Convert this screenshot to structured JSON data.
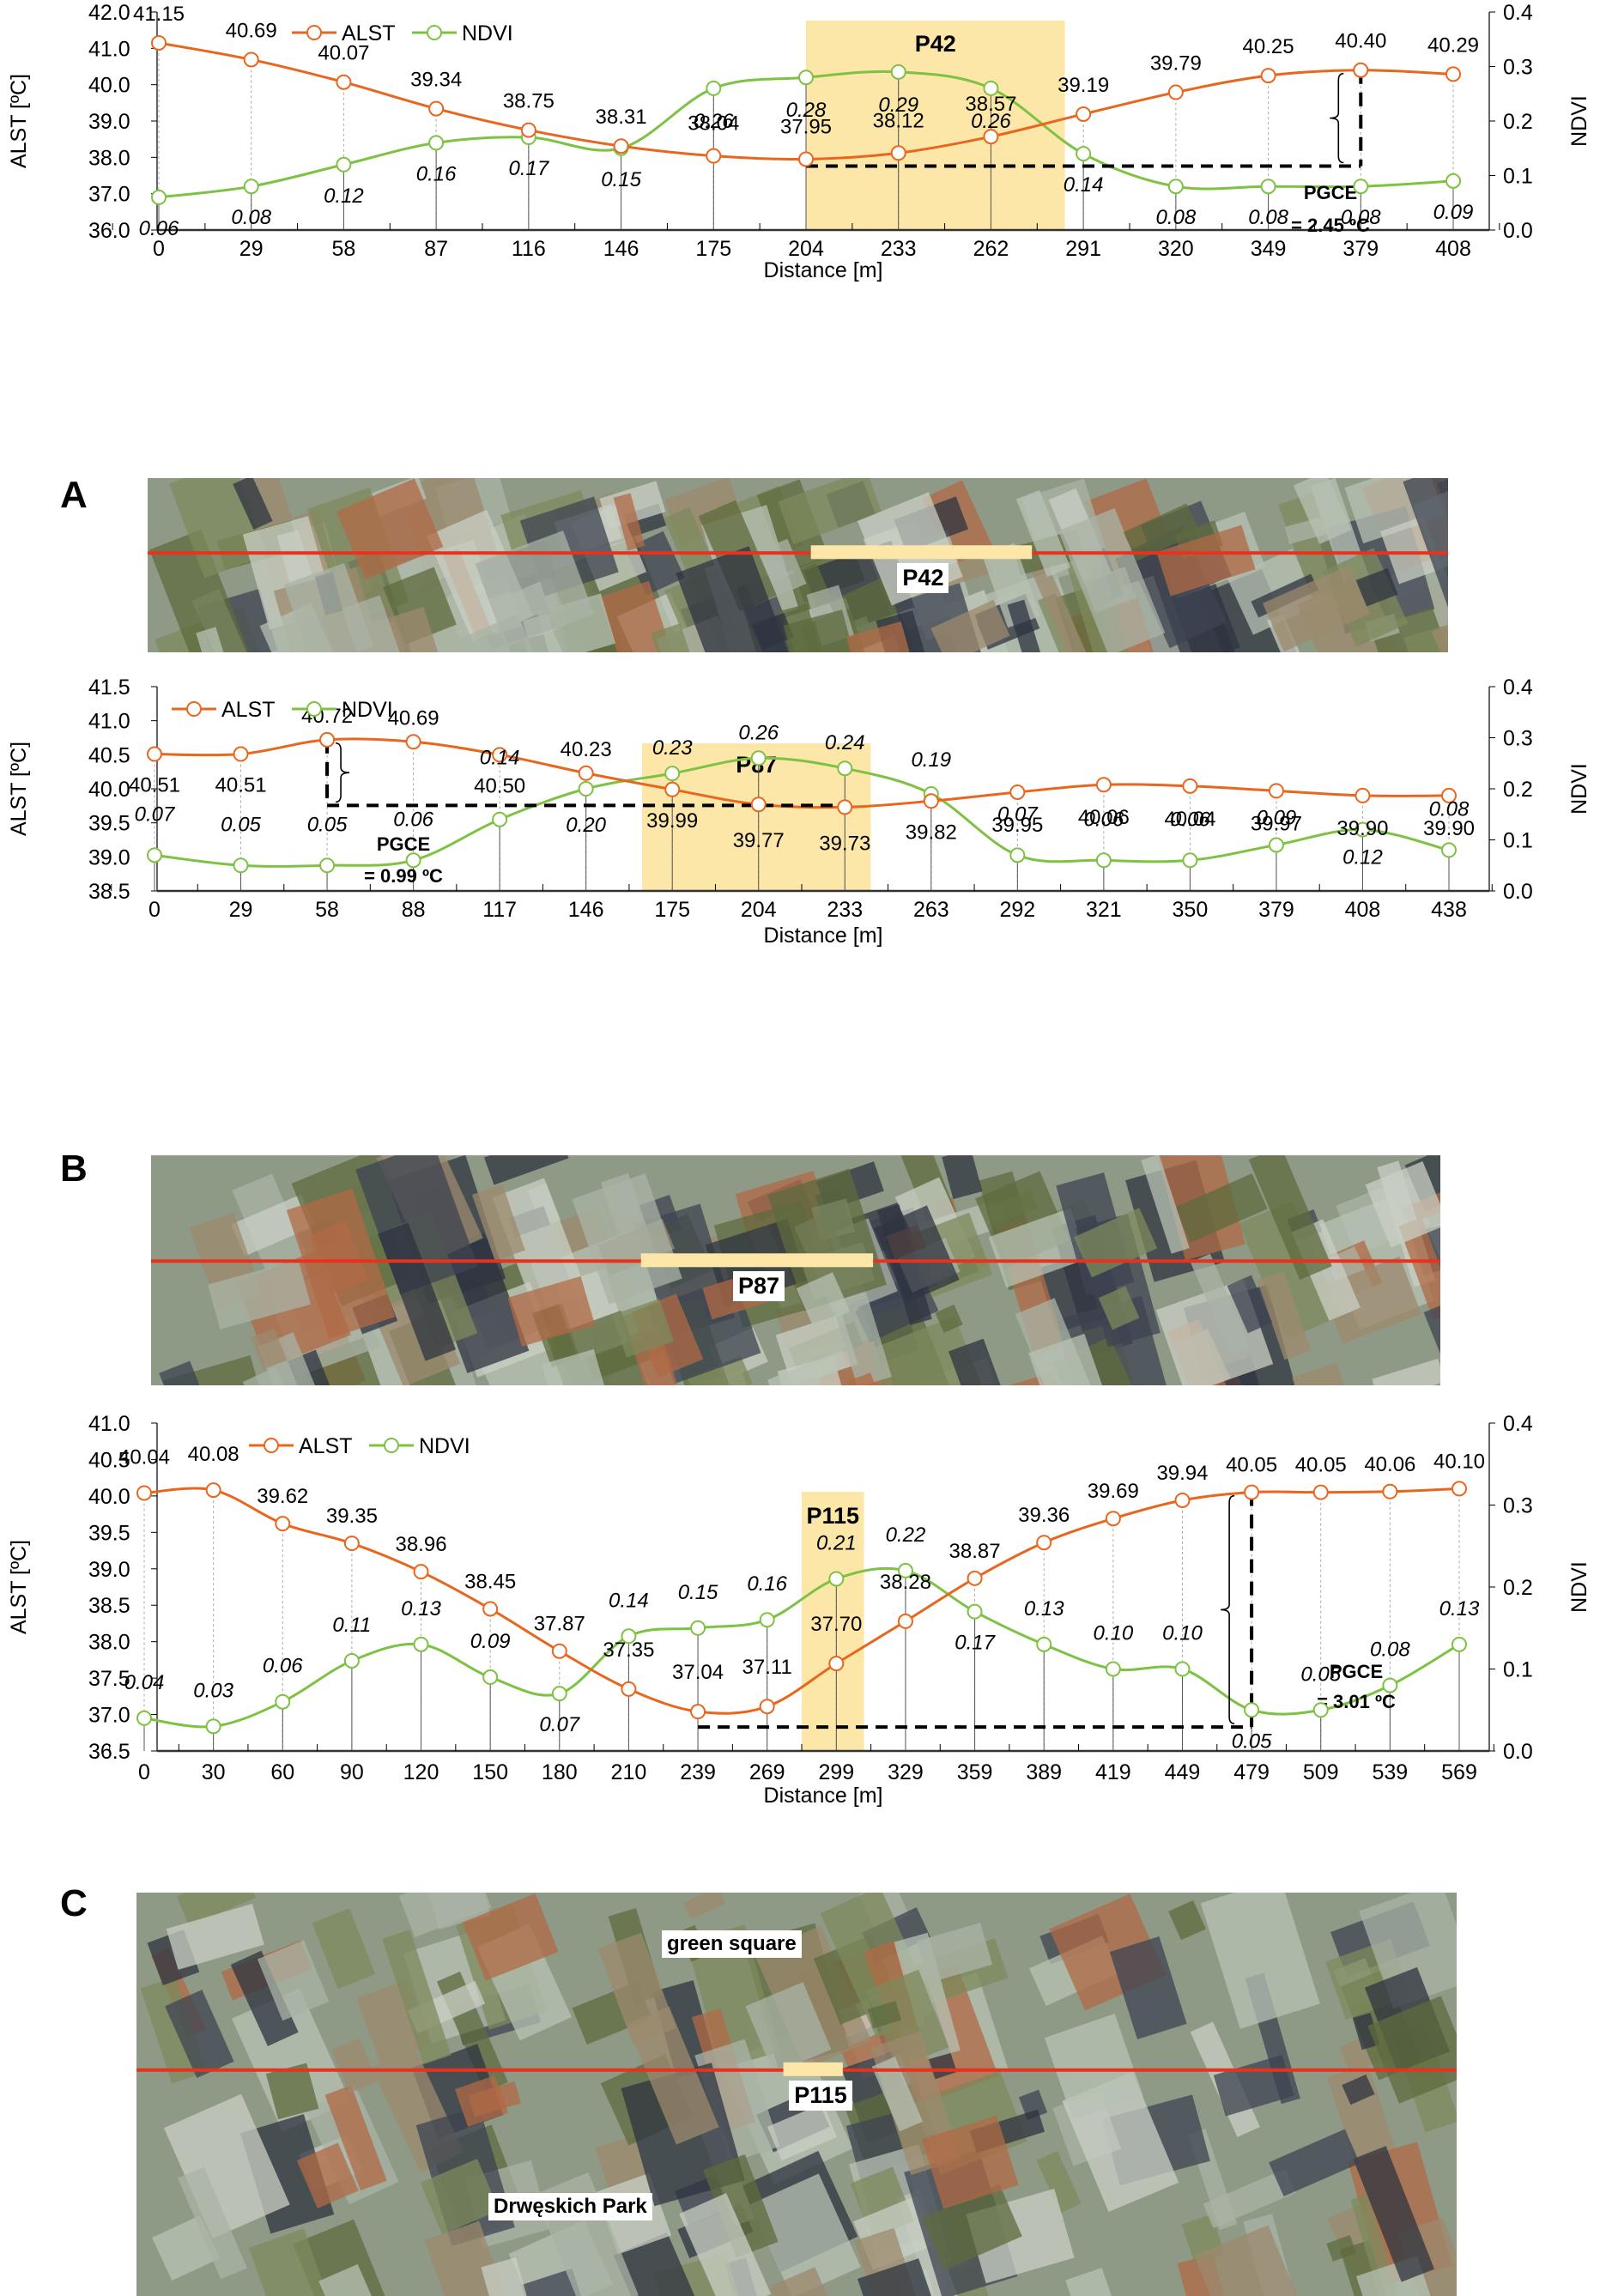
{
  "colors": {
    "alst": "#E8661E",
    "ndvi": "#7DC242",
    "highlight": "#FCE6A8",
    "profile_line": "#E8321E",
    "axis": "#000000"
  },
  "chart_data": [
    {
      "id": "A",
      "type": "line",
      "panel_label": "A",
      "xlabel": "Distance [m]",
      "ylabel": "ALST [ºC]",
      "y2label": "NDVI",
      "legend": [
        "ALST",
        "NDVI"
      ],
      "legend_position": "top-left",
      "x": [
        0,
        29,
        58,
        87,
        116,
        146,
        175,
        204,
        233,
        262,
        291,
        320,
        349,
        379,
        408
      ],
      "ylim": [
        36.0,
        42.0
      ],
      "yticks": [
        "36.0",
        "37.0",
        "38.0",
        "39.0",
        "40.0",
        "41.0",
        "42.0"
      ],
      "y2lim": [
        0.0,
        0.4
      ],
      "y2ticks": [
        "0.0",
        "0.1",
        "0.2",
        "0.3",
        "0.4"
      ],
      "series": [
        {
          "name": "ALST",
          "axis": "left",
          "values": [
            41.15,
            40.69,
            40.07,
            39.34,
            38.75,
            38.31,
            38.04,
            37.95,
            38.12,
            38.57,
            39.19,
            39.79,
            40.25,
            40.4,
            40.29
          ]
        },
        {
          "name": "NDVI",
          "axis": "right",
          "values": [
            0.06,
            0.08,
            0.12,
            0.16,
            0.17,
            0.15,
            0.26,
            0.28,
            0.29,
            0.26,
            0.14,
            0.08,
            0.08,
            0.08,
            0.09
          ]
        }
      ],
      "highlight": {
        "label": "P42",
        "from_index": 7,
        "to_index": 9.8
      },
      "annotation": {
        "title": "PGCE",
        "value": "= 2.45 ºC",
        "min_index": 7,
        "max_index": 13,
        "min": 37.95,
        "max": 40.4
      }
    },
    {
      "id": "B",
      "type": "line",
      "panel_label": "B",
      "xlabel": "Distance [m]",
      "ylabel": "ALST [ºC]",
      "y2label": "NDVI",
      "legend": [
        "ALST",
        "NDVI"
      ],
      "legend_position": "top-left",
      "x": [
        0,
        29,
        58,
        88,
        117,
        146,
        175,
        204,
        233,
        263,
        292,
        321,
        350,
        379,
        408,
        438
      ],
      "ylim": [
        38.5,
        41.5
      ],
      "yticks": [
        "38.5",
        "39.0",
        "39.5",
        "40.0",
        "40.5",
        "41.0",
        "41.5"
      ],
      "y2lim": [
        0.0,
        0.4
      ],
      "y2ticks": [
        "0.0",
        "0.1",
        "0.2",
        "0.3",
        "0.4"
      ],
      "series": [
        {
          "name": "ALST",
          "axis": "left",
          "values": [
            40.51,
            40.51,
            40.72,
            40.69,
            40.5,
            40.23,
            39.99,
            39.77,
            39.73,
            39.82,
            39.95,
            40.06,
            40.04,
            39.97,
            39.9,
            39.9
          ]
        },
        {
          "name": "NDVI",
          "axis": "right",
          "values": [
            0.07,
            0.05,
            0.05,
            0.06,
            0.14,
            0.2,
            0.23,
            0.26,
            0.24,
            0.19,
            0.07,
            0.06,
            0.06,
            0.09,
            0.12,
            0.08
          ]
        }
      ],
      "highlight": {
        "label": "P87",
        "from_index": 5.65,
        "to_index": 8.3
      },
      "annotation": {
        "title": "PGCE",
        "value": "= 0.99 ºC",
        "min_index": 8,
        "max_index": 2,
        "min": 39.73,
        "max": 40.72
      }
    },
    {
      "id": "C",
      "type": "line",
      "panel_label": "C",
      "xlabel": "Distance [m]",
      "ylabel": "ALST [ºC]",
      "y2label": "NDVI",
      "legend": [
        "ALST",
        "NDVI"
      ],
      "legend_position": "top-left",
      "x": [
        0,
        30,
        60,
        90,
        120,
        150,
        180,
        210,
        239,
        269,
        299,
        329,
        359,
        389,
        419,
        449,
        479,
        509,
        539,
        569
      ],
      "ylim": [
        36.5,
        41.0
      ],
      "yticks": [
        "36.5",
        "37.0",
        "37.5",
        "38.0",
        "38.5",
        "39.0",
        "39.5",
        "40.0",
        "40.5",
        "41.0"
      ],
      "y2lim": [
        0.0,
        0.4
      ],
      "y2ticks": [
        "0.0",
        "0.1",
        "0.2",
        "0.3",
        "0.4"
      ],
      "series": [
        {
          "name": "ALST",
          "axis": "left",
          "values": [
            40.04,
            40.08,
            39.62,
            39.35,
            38.96,
            38.45,
            37.87,
            37.35,
            37.04,
            37.11,
            37.7,
            38.28,
            38.87,
            39.36,
            39.69,
            39.94,
            40.05,
            40.05,
            40.06,
            40.1
          ]
        },
        {
          "name": "NDVI",
          "axis": "right",
          "values": [
            0.04,
            0.03,
            0.06,
            0.11,
            0.13,
            0.09,
            0.07,
            0.14,
            0.15,
            0.16,
            0.21,
            0.22,
            0.17,
            0.13,
            0.1,
            0.1,
            0.05,
            0.05,
            0.08,
            0.13
          ]
        }
      ],
      "highlight": {
        "label": "P115",
        "from_index": 9.5,
        "to_index": 10.4
      },
      "annotation": {
        "title": "PGCE",
        "value": "= 3.01 ºC",
        "min_index": 8,
        "max_index": 16,
        "min": 37.04,
        "max": 40.05
      }
    }
  ],
  "maps": [
    {
      "panel_label": "A",
      "park_label": "P42",
      "extra_labels": []
    },
    {
      "panel_label": "B",
      "park_label": "P87",
      "extra_labels": []
    },
    {
      "panel_label": "C",
      "park_label": "P115",
      "extra_labels": [
        "green square",
        "Drwęskich Park"
      ]
    }
  ]
}
